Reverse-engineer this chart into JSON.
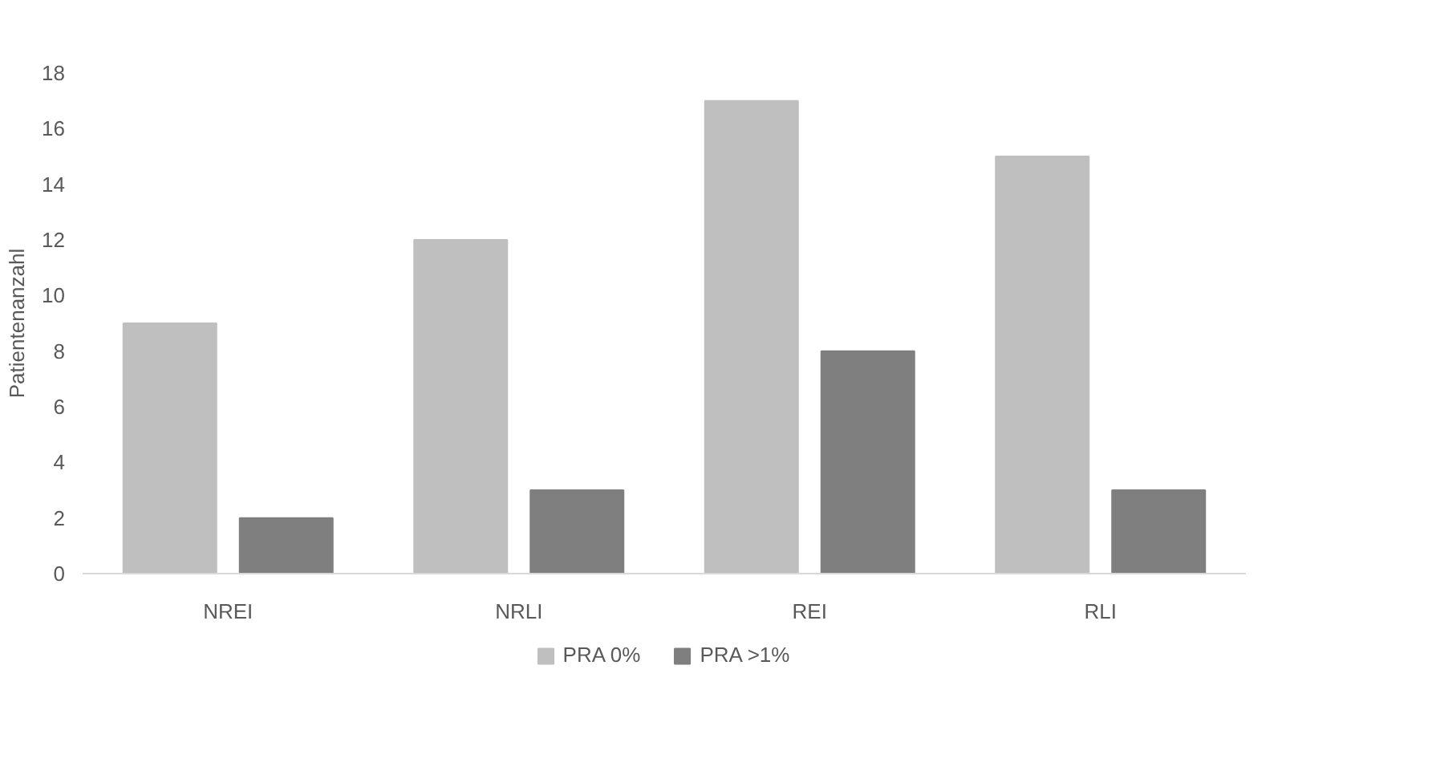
{
  "chart_data": {
    "type": "bar",
    "ylabel": "Patientenanzahl",
    "categories": [
      "NREI",
      "NRLI",
      "REI",
      "RLI"
    ],
    "series": [
      {
        "name": "PRA 0%",
        "color": "#bfbfbf",
        "values": [
          9,
          12,
          17,
          15
        ]
      },
      {
        "name": "PRA >1%",
        "color": "#7f7f7f",
        "values": [
          2,
          3,
          8,
          3
        ]
      }
    ],
    "ylim": [
      0,
      18
    ],
    "yticks": [
      0,
      2,
      4,
      6,
      8,
      10,
      12,
      14,
      16,
      18
    ],
    "grid": false,
    "legend": "bottom"
  }
}
